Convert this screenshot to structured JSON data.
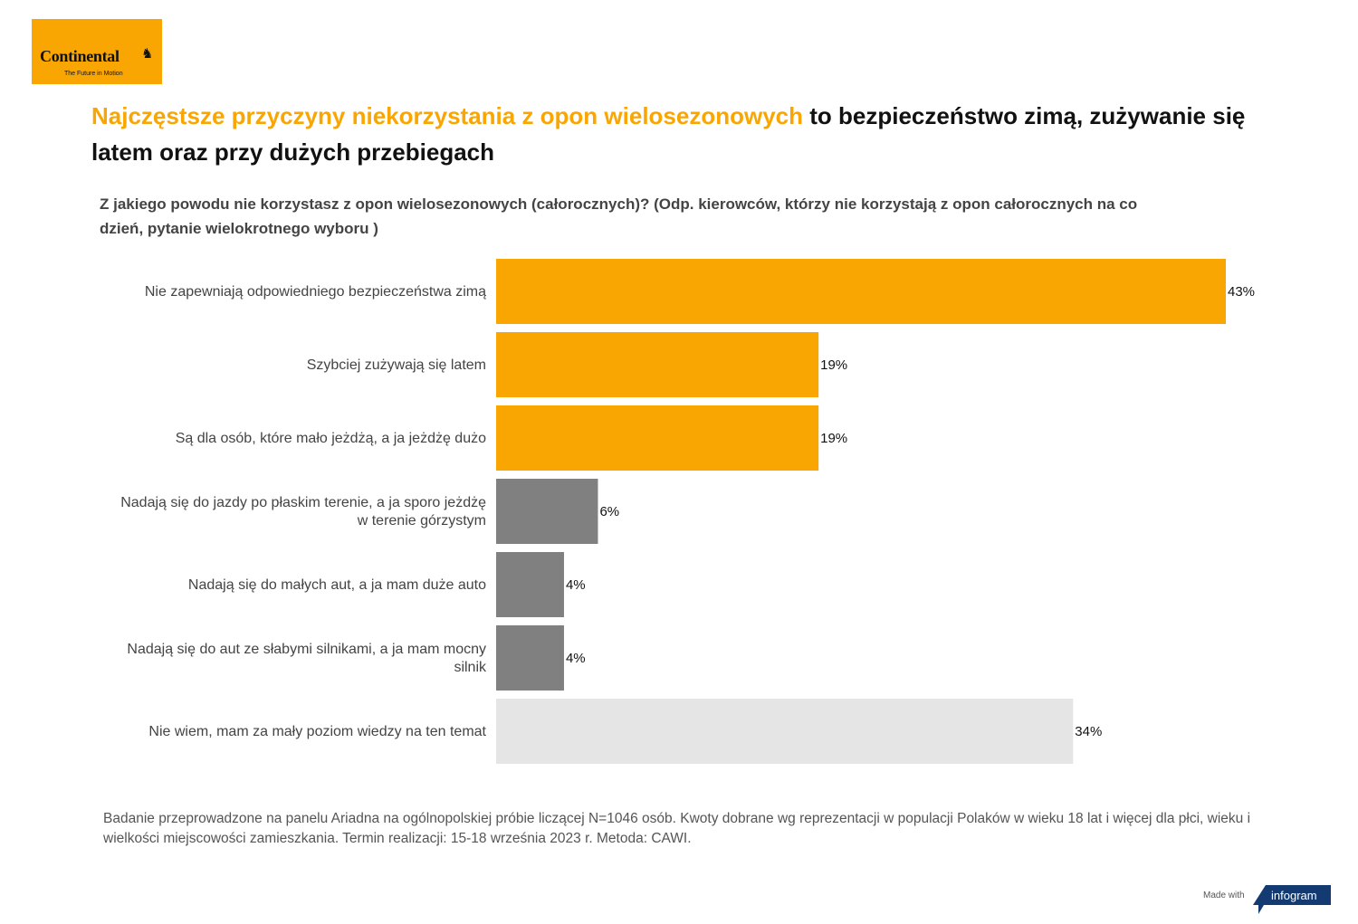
{
  "logo": {
    "brand": "Continental",
    "tagline": "The Future in Motion",
    "color": "#f9a602"
  },
  "title": {
    "highlight": "Najczęstsze przyczyny niekorzystania z opon wielosezonowych",
    "rest": " to bezpieczeństwo zimą, zużywanie się latem oraz przy dużych przebiegach"
  },
  "subtitle": "Z jakiego powodu nie korzystasz z opon wielosezonowych (całorocznych)? (Odp. kierowców, którzy nie korzystają z opon całorocznych na co dzień, pytanie wielokrotnego wyboru )",
  "footer": "Badanie przeprowadzone na panelu Ariadna na ogólnopolskiej próbie liczącej N=1046 osób. Kwoty dobrane wg reprezentacji w populacji Polaków w wieku 18 lat i więcej dla płci, wieku i wielkości miejscowości zamieszkania. Termin realizacji:  15-18 września 2023 r. Metoda: CAWI.",
  "made_with": "Made with",
  "infogram": "infogram",
  "chart_data": {
    "type": "bar",
    "orientation": "horizontal",
    "categories": [
      [
        "Nie zapewniają odpowiedniego bezpieczeństwa zimą"
      ],
      [
        "Szybciej zużywają się latem"
      ],
      [
        "Są dla osób, które mało jeżdżą, a ja jeżdżę dużo"
      ],
      [
        "Nadają się do jazdy po płaskim terenie, a ja sporo jeżdżę",
        "w terenie górzystym"
      ],
      [
        "Nadają się do małych aut, a ja mam duże auto"
      ],
      [
        "Nadają się do aut ze słabymi silnikami, a ja mam mocny",
        "silnik"
      ],
      [
        "Nie wiem, mam za mały poziom wiedzy na ten temat"
      ]
    ],
    "values": [
      43,
      19,
      19,
      6,
      4,
      4,
      34
    ],
    "labels": [
      "43%",
      "19%",
      "19%",
      "6%",
      "4%",
      "4%",
      "34%"
    ],
    "colors": [
      "#f9a602",
      "#f9a602",
      "#f9a602",
      "#808080",
      "#808080",
      "#808080",
      "#e5e5e5"
    ],
    "xlim": [
      0,
      43
    ],
    "grid": false
  }
}
